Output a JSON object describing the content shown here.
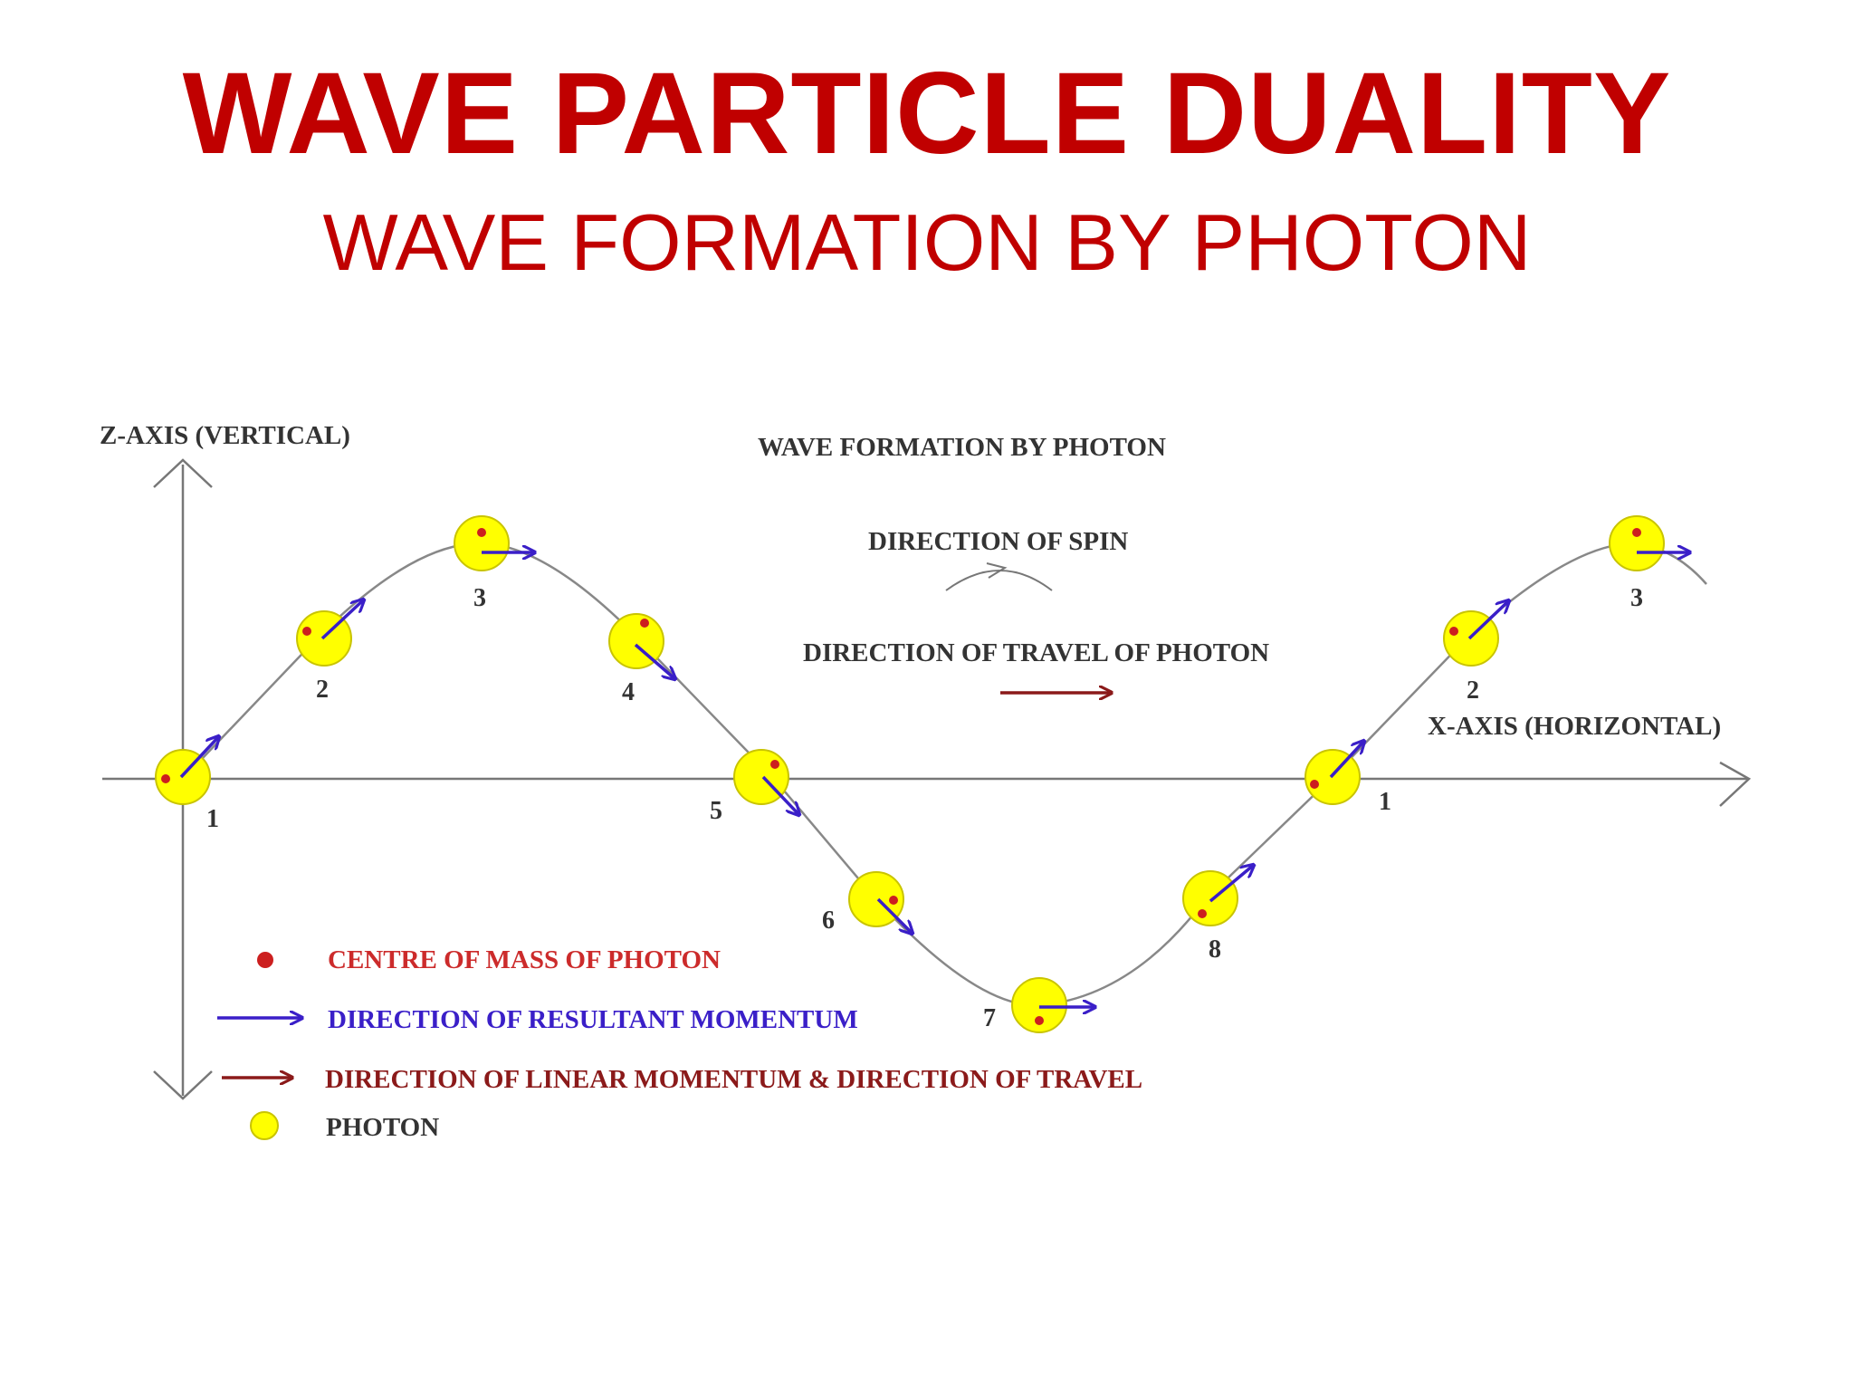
{
  "slide": {
    "title": "WAVE PARTICLE  DUALITY",
    "subtitle": "WAVE FORMATION BY PHOTON"
  },
  "diagram": {
    "z_axis_label": "Z-AXIS (VERTICAL)",
    "x_axis_label": "X-AXIS (HORIZONTAL)",
    "heading": "WAVE FORMATION BY PHOTON",
    "spin_label": "DIRECTION OF SPIN",
    "travel_label": "DIRECTION OF TRAVEL OF PHOTON",
    "photon_labels": [
      "1",
      "2",
      "3",
      "4",
      "5",
      "6",
      "7",
      "8",
      "1",
      "2",
      "3"
    ],
    "legend": {
      "centre_of_mass": "CENTRE OF MASS OF PHOTON",
      "resultant_momentum": "DIRECTION OF RESULTANT MOMENTUM",
      "linear_momentum": "DIRECTION OF LINEAR MOMENTUM & DIRECTION OF TRAVEL",
      "photon": "PHOTON"
    },
    "colors": {
      "title": "#c00000",
      "photon_fill": "#ffff00",
      "centre_of_mass": "#cc1f1f",
      "resultant_momentum": "#3a1fc8",
      "linear_momentum": "#8b1a1a",
      "axis": "#777777"
    }
  }
}
